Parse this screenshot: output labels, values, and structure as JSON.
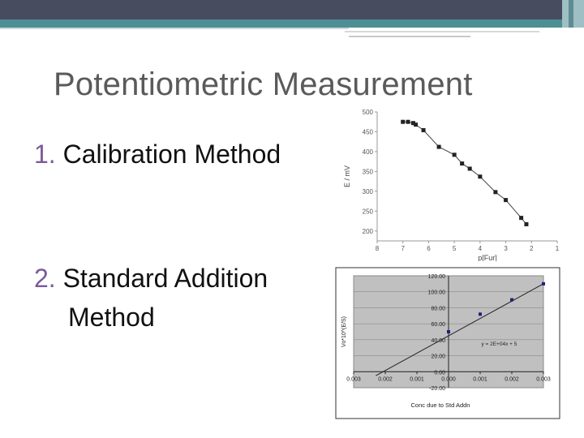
{
  "slide": {
    "title": "Potentiometric Measurement",
    "items": [
      {
        "number": "1.",
        "text": "Calibration Method"
      },
      {
        "number": "2.",
        "text_line1": "Standard Addition",
        "text_line2": "Method"
      }
    ]
  },
  "colors": {
    "title": "#5a5a5a",
    "number_accent": "#7a5a9a",
    "topbar": "#474c5e",
    "topbar_accent": "#4e8f95"
  },
  "chart_data": [
    {
      "type": "scatter",
      "xlabel": "p[Fur]",
      "ylabel": "E / mV",
      "xlim": [
        8,
        1
      ],
      "ylim": [
        175,
        500
      ],
      "x_ticks": [
        8,
        7,
        6,
        5,
        4,
        3,
        2,
        1
      ],
      "y_ticks": [
        200,
        250,
        300,
        350,
        400,
        450,
        500
      ],
      "grid": false,
      "connected": true,
      "series": [
        {
          "x": [
            7.0,
            6.8,
            6.6,
            6.5,
            6.2,
            5.6,
            5.0,
            4.7,
            4.4,
            4.0,
            3.4,
            3.0,
            2.4,
            2.2
          ],
          "y": [
            475,
            475,
            472,
            468,
            454,
            412,
            392,
            370,
            357,
            337,
            298,
            278,
            233,
            217
          ]
        }
      ]
    },
    {
      "type": "scatter",
      "xlabel": "Conc due to Std Addn",
      "ylabel": "Vo*10^(E/S)",
      "xlim": [
        -0.003,
        0.003
      ],
      "ylim": [
        -20,
        120
      ],
      "x_tick_labels": [
        "0.003",
        "0.002",
        "0.001",
        "0.000",
        "0.001",
        "0.002",
        "0.003"
      ],
      "y_tick_labels": [
        "-20.00",
        "0.00",
        "20.00",
        "40.00",
        "60.00",
        "80.00",
        "100.00",
        "120.00"
      ],
      "y_ticks": [
        -20,
        0,
        20,
        40,
        60,
        80,
        100,
        120
      ],
      "grid": true,
      "trendline_label": "y = 2E+04x + 5",
      "series": [
        {
          "x": [
            0.0,
            0.001,
            0.002,
            0.003
          ],
          "y": [
            50,
            72,
            90,
            110
          ]
        }
      ],
      "trendline": {
        "x": [
          -0.0023,
          0.003
        ],
        "y": [
          -5,
          110
        ]
      }
    }
  ]
}
